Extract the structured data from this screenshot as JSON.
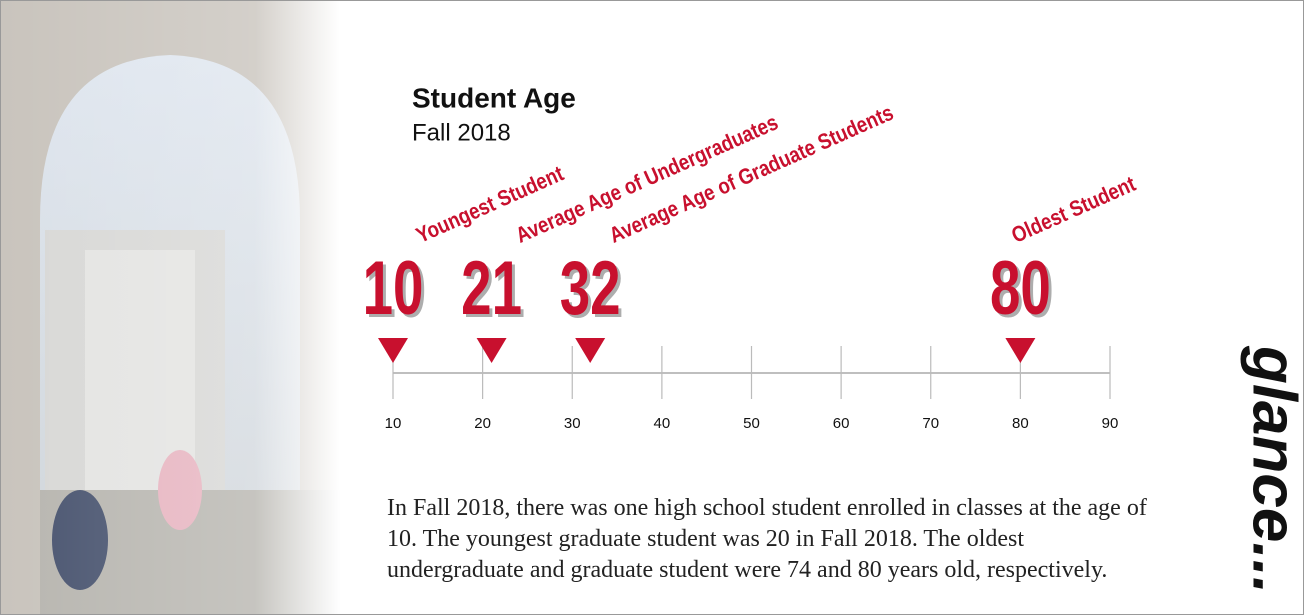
{
  "chart_data": {
    "type": "timeline",
    "title": "Student Age",
    "subtitle": "Fall 2018",
    "categories": [
      "Youngest Student",
      "Average Age of Undergraduates",
      "Average Age of Graduate Students",
      "Oldest Student"
    ],
    "values": [
      10,
      21,
      32,
      80
    ],
    "color": "#c8102e",
    "xlim": [
      10,
      90
    ],
    "xticks": [
      10,
      20,
      30,
      40,
      50,
      60,
      70,
      80,
      90
    ],
    "caption": "In Fall 2018, there was one high school student enrolled in classes at the age of 10. The youngest graduate student was 20 in Fall 2018. The oldest undergraduate and graduate student were 74 and 80 years old, respectively.",
    "side_text": "glance..."
  }
}
